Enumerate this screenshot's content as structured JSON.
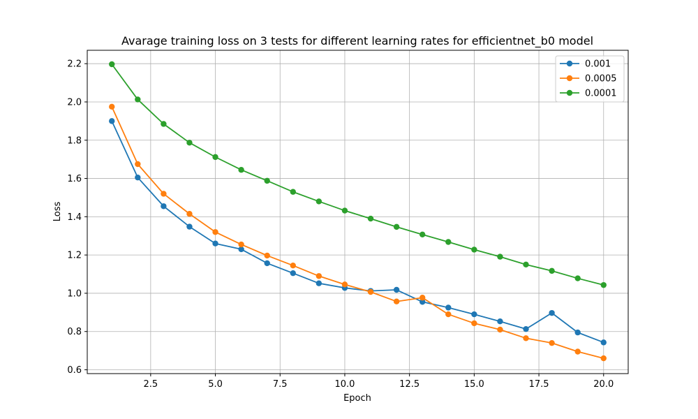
{
  "chart_data": {
    "type": "line",
    "title": "Avarage training loss on 3 tests for different learning rates for efficientnet_b0 model",
    "xlabel": "Epoch",
    "ylabel": "Loss",
    "xlim": [
      0.05,
      20.95
    ],
    "ylim": [
      0.58,
      2.27
    ],
    "xticks": [
      2.5,
      5.0,
      7.5,
      10.0,
      12.5,
      15.0,
      17.5,
      20.0
    ],
    "xtick_labels": [
      "2.5",
      "5.0",
      "7.5",
      "10.0",
      "12.5",
      "15.0",
      "17.5",
      "20.0"
    ],
    "yticks": [
      0.6,
      0.8,
      1.0,
      1.2,
      1.4,
      1.6,
      1.8,
      2.0,
      2.2
    ],
    "ytick_labels": [
      "0.6",
      "0.8",
      "1.0",
      "1.2",
      "1.4",
      "1.6",
      "1.8",
      "2.0",
      "2.2"
    ],
    "grid": true,
    "legend_position": "top-right",
    "x": [
      1,
      2,
      3,
      4,
      5,
      6,
      7,
      8,
      9,
      10,
      11,
      12,
      13,
      14,
      15,
      16,
      17,
      18,
      19,
      20
    ],
    "series": [
      {
        "name": "0.001",
        "color": "#1f77b4",
        "values": [
          1.9,
          1.605,
          1.455,
          1.348,
          1.26,
          1.23,
          1.157,
          1.105,
          1.052,
          1.028,
          1.012,
          1.018,
          0.955,
          0.925,
          0.89,
          0.853,
          0.813,
          0.897,
          0.795,
          0.743
        ]
      },
      {
        "name": "0.0005",
        "color": "#ff7f0e",
        "values": [
          1.975,
          1.675,
          1.52,
          1.415,
          1.32,
          1.255,
          1.197,
          1.145,
          1.09,
          1.046,
          1.007,
          0.957,
          0.977,
          0.89,
          0.843,
          0.81,
          0.765,
          0.74,
          0.695,
          0.66
        ]
      },
      {
        "name": "0.0001",
        "color": "#2ca02c",
        "values": [
          2.197,
          2.013,
          1.885,
          1.787,
          1.712,
          1.645,
          1.588,
          1.53,
          1.48,
          1.432,
          1.39,
          1.347,
          1.307,
          1.268,
          1.228,
          1.191,
          1.15,
          1.117,
          1.078,
          1.043
        ]
      }
    ]
  }
}
